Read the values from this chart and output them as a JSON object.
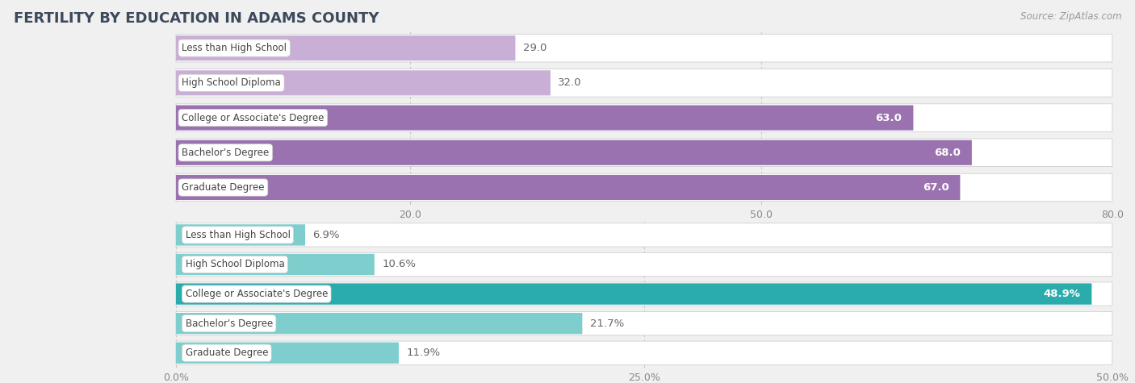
{
  "title": "FERTILITY BY EDUCATION IN ADAMS COUNTY",
  "source": "Source: ZipAtlas.com",
  "top_section": {
    "categories": [
      "Less than High School",
      "High School Diploma",
      "College or Associate's Degree",
      "Bachelor's Degree",
      "Graduate Degree"
    ],
    "values": [
      29.0,
      32.0,
      63.0,
      68.0,
      67.0
    ],
    "xlim": [
      0,
      80
    ],
    "xticks": [
      20.0,
      50.0,
      80.0
    ],
    "bar_color_low": "#c9aed6",
    "bar_color_high": "#9b72b0",
    "threshold": 50
  },
  "bottom_section": {
    "categories": [
      "Less than High School",
      "High School Diploma",
      "College or Associate's Degree",
      "Bachelor's Degree",
      "Graduate Degree"
    ],
    "values": [
      6.9,
      10.6,
      48.9,
      21.7,
      11.9
    ],
    "xlim": [
      0,
      50
    ],
    "xticks": [
      0.0,
      25.0,
      50.0
    ],
    "xtick_labels": [
      "0.0%",
      "25.0%",
      "50.0%"
    ],
    "bar_color_low": "#7ecece",
    "bar_color_high": "#2aacac",
    "threshold": 25
  },
  "label_color_dark": "#666666",
  "label_color_light": "#ffffff",
  "bar_height": 0.72,
  "label_fontsize": 9.5,
  "cat_fontsize": 8.5,
  "tick_fontsize": 9,
  "title_fontsize": 13,
  "background_color": "#f0f0f0",
  "bar_bg_color": "#ffffff"
}
